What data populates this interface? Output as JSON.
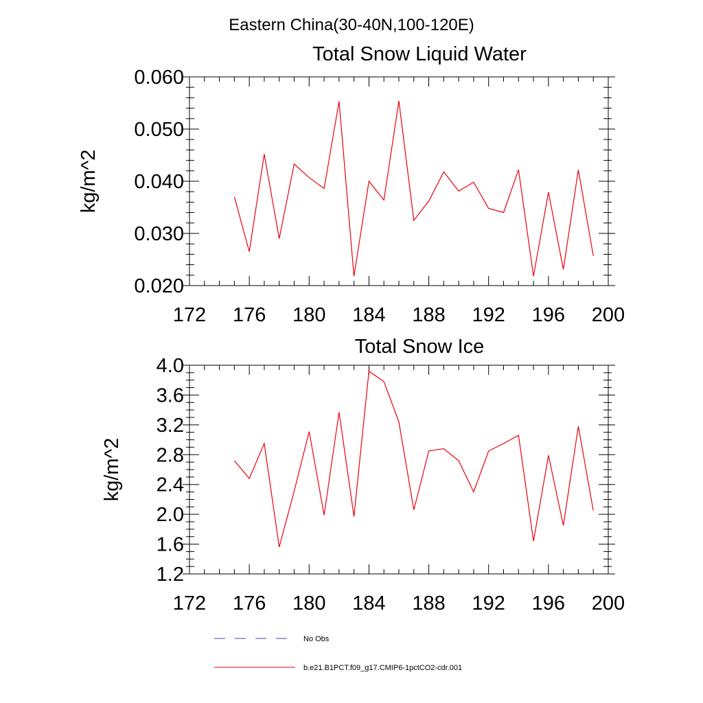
{
  "figure_title": "Eastern China(30-40N,100-120E)",
  "chart_data": [
    {
      "type": "line",
      "title": "Total Snow Liquid Water",
      "xlabel": "",
      "ylabel": "kg/m^2",
      "xlim": [
        172,
        200
      ],
      "ylim": [
        0.02,
        0.06
      ],
      "x_ticks": [
        172,
        176,
        180,
        184,
        188,
        192,
        196,
        200
      ],
      "x_tick_labels": [
        "172",
        "176",
        "180",
        "184",
        "188",
        "192",
        "196",
        "200"
      ],
      "y_ticks": [
        0.02,
        0.03,
        0.04,
        0.05,
        0.06
      ],
      "y_tick_labels": [
        "0.020",
        "0.030",
        "0.040",
        "0.050",
        "0.060"
      ],
      "grid": false,
      "series": [
        {
          "name": "b.e21.B1PCT.f09_g17.CMIP6-1pctCO2-cdr.001",
          "color": "#e8000b",
          "x": [
            175,
            176,
            177,
            178,
            179,
            180,
            181,
            182,
            183,
            184,
            185,
            186,
            187,
            188,
            189,
            190,
            191,
            192,
            193,
            194,
            195,
            196,
            197,
            198,
            199
          ],
          "y": [
            0.037,
            0.0265,
            0.0452,
            0.029,
            0.0433,
            0.0407,
            0.0386,
            0.0553,
            0.0218,
            0.04,
            0.0364,
            0.0554,
            0.0325,
            0.0362,
            0.0418,
            0.0381,
            0.0398,
            0.0348,
            0.034,
            0.0422,
            0.0218,
            0.0379,
            0.0231,
            0.0422,
            0.0257
          ]
        }
      ]
    },
    {
      "type": "line",
      "title": "Total Snow Ice",
      "xlabel": "",
      "ylabel": "kg/m^2",
      "xlim": [
        172,
        200
      ],
      "ylim": [
        1.2,
        4.0
      ],
      "x_ticks": [
        172,
        176,
        180,
        184,
        188,
        192,
        196,
        200
      ],
      "x_tick_labels": [
        "172",
        "176",
        "180",
        "184",
        "188",
        "192",
        "196",
        "200"
      ],
      "y_ticks": [
        1.2,
        1.6,
        2.0,
        2.4,
        2.8,
        3.2,
        3.6,
        4.0
      ],
      "y_tick_labels": [
        "1.2",
        "1.6",
        "2.0",
        "2.4",
        "2.8",
        "3.2",
        "3.6",
        "4.0"
      ],
      "grid": false,
      "series": [
        {
          "name": "b.e21.B1PCT.f09_g17.CMIP6-1pctCO2-cdr.001",
          "color": "#e8000b",
          "x": [
            175,
            176,
            177,
            178,
            179,
            180,
            181,
            182,
            183,
            184,
            185,
            186,
            187,
            188,
            189,
            190,
            191,
            192,
            193,
            194,
            195,
            196,
            197,
            198,
            199
          ],
          "y": [
            2.72,
            2.48,
            2.95,
            1.56,
            2.31,
            3.11,
            1.99,
            3.37,
            1.97,
            3.92,
            3.78,
            3.24,
            2.06,
            2.85,
            2.88,
            2.72,
            2.3,
            2.85,
            2.95,
            3.06,
            1.64,
            2.79,
            1.85,
            3.18,
            2.05
          ]
        }
      ]
    }
  ],
  "legend": {
    "placement": "bottom-left",
    "items": [
      {
        "label": "No Obs",
        "color": "#3b4aa0",
        "dash": true
      },
      {
        "label": "b.e21.B1PCT.f09_g17.CMIP6-1pctCO2-cdr.001",
        "color": "#e8000b",
        "dash": false
      }
    ]
  }
}
